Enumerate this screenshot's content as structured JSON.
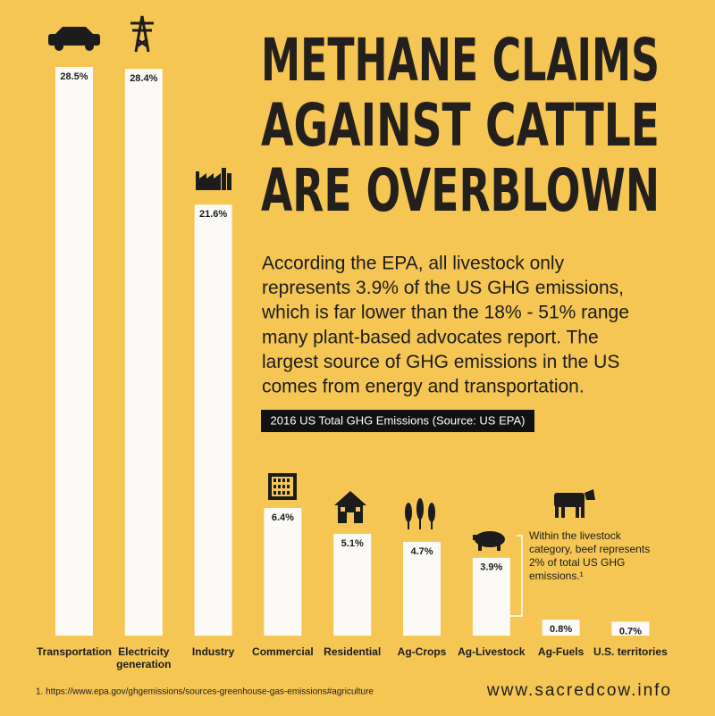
{
  "chart_data": {
    "type": "bar",
    "title": [
      "METHANE CLAIMS",
      "AGAINST CATTLE",
      "ARE OVERBLOWN"
    ],
    "subtitle": [
      "According the EPA, all livestock only",
      "represents 3.9% of the US GHG emissions,",
      "which is far lower than the 18% - 51% range",
      "many plant-based advocates report. The",
      "largest source of GHG emissions in the US",
      "comes from energy and transportation."
    ],
    "chart_label": "2016 US Total GHG Emissions (Source: US EPA)",
    "categories": [
      "Transportation",
      "Electricity\ngeneration",
      "Industry",
      "Commercial",
      "Residential",
      "Ag-Crops",
      "Ag-Livestock",
      "Ag-Fuels",
      "U.S. territories"
    ],
    "values": [
      28.5,
      28.4,
      21.6,
      6.4,
      5.1,
      4.7,
      3.9,
      0.8,
      0.7
    ],
    "value_labels": [
      "28.5%",
      "28.4%",
      "21.6%",
      "6.4%",
      "5.1%",
      "4.7%",
      "3.9%",
      "0.8%",
      "0.7%"
    ],
    "color": "#fbfaf6",
    "annotation": [
      "Within the livestock",
      "category, beef represents",
      "2% of total US GHG",
      "emissions.¹"
    ],
    "footnote": "1. https://www.epa.gov/ghgemissions/sources-greenhouse-gas-emissions#agriculture",
    "website": "www.sacredcow.info"
  }
}
